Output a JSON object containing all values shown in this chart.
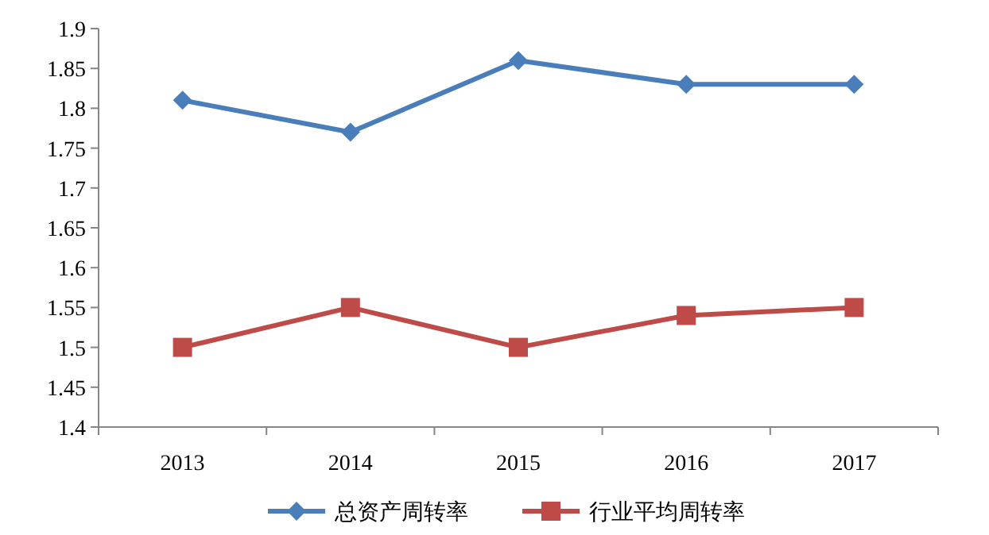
{
  "chart_data": {
    "type": "line",
    "categories": [
      "2013",
      "2014",
      "2015",
      "2016",
      "2017"
    ],
    "series": [
      {
        "name": "总资产周转率",
        "color": "#4a7ebb",
        "marker": "diamond",
        "values": [
          1.81,
          1.77,
          1.86,
          1.83,
          1.83
        ]
      },
      {
        "name": "行业平均周转率",
        "color": "#be4b48",
        "marker": "square",
        "values": [
          1.5,
          1.55,
          1.5,
          1.54,
          1.55
        ]
      }
    ],
    "ylim": [
      1.4,
      1.9
    ],
    "yticks": [
      1.4,
      1.45,
      1.5,
      1.55,
      1.6,
      1.65,
      1.7,
      1.75,
      1.8,
      1.85,
      1.9
    ],
    "grid": false,
    "legend": "bottom"
  }
}
